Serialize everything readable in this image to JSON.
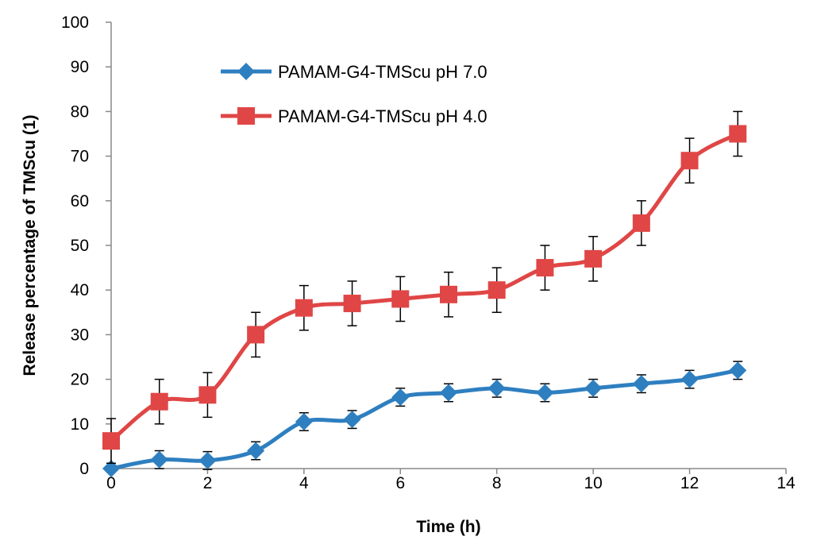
{
  "chart_data": {
    "type": "line",
    "title": "",
    "xlabel": "Time (h)",
    "ylabel": "Release percentage of TMScu (1)",
    "xlim": [
      0,
      14
    ],
    "ylim": [
      0,
      100
    ],
    "xticks": [
      0,
      2,
      4,
      6,
      8,
      10,
      12,
      14
    ],
    "yticks": [
      0,
      10,
      20,
      30,
      40,
      50,
      60,
      70,
      80,
      90,
      100
    ],
    "grid": false,
    "legend_position": "top-left",
    "x": [
      0,
      1,
      2,
      3,
      4,
      5,
      6,
      7,
      8,
      9,
      10,
      11,
      12,
      13
    ],
    "series": [
      {
        "name": "PAMAM-G4-TMScu pH 7.0",
        "color": "#2e7fc0",
        "marker": "diamond",
        "values": [
          0,
          2,
          1.8,
          4,
          10.5,
          11,
          16,
          17,
          18,
          17,
          18,
          19,
          20,
          22
        ],
        "errors": [
          0,
          2,
          2,
          2,
          2,
          2,
          2,
          2,
          2,
          2,
          2,
          2,
          2,
          2
        ]
      },
      {
        "name": "PAMAM-G4-TMScu pH 4.0",
        "color": "#e04646",
        "marker": "square",
        "values": [
          6.2,
          15,
          16.5,
          30,
          36,
          37,
          38,
          39,
          40,
          45,
          47,
          55,
          69,
          75
        ],
        "errors": [
          5,
          5,
          5,
          5,
          5,
          5,
          5,
          5,
          5,
          5,
          5,
          5,
          5,
          5
        ]
      }
    ]
  }
}
